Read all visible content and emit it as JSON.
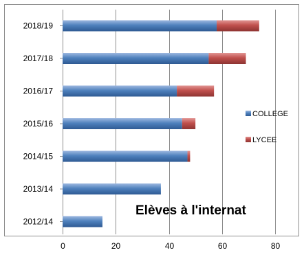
{
  "chart_data": {
    "type": "bar",
    "orientation": "horizontal",
    "stacked": true,
    "title": "Elèves  à l'internat",
    "xlabel": "",
    "ylabel": "",
    "categories": [
      "2012/14",
      "2013/14",
      "2014/15",
      "2015/16",
      "2016/17",
      "2017/18",
      "2018/19"
    ],
    "series": [
      {
        "name": "COLLEGE",
        "color": "#4F81BD",
        "values": [
          15,
          37,
          47,
          45,
          43,
          55,
          58
        ]
      },
      {
        "name": "LYCEE",
        "color": "#C0504D",
        "values": [
          0,
          0,
          1,
          5,
          14,
          14,
          16
        ]
      }
    ],
    "xlim": [
      0,
      80
    ],
    "xticks": [
      "0",
      "20",
      "40",
      "60",
      "80"
    ],
    "grid": "vertical",
    "legend": "right"
  }
}
